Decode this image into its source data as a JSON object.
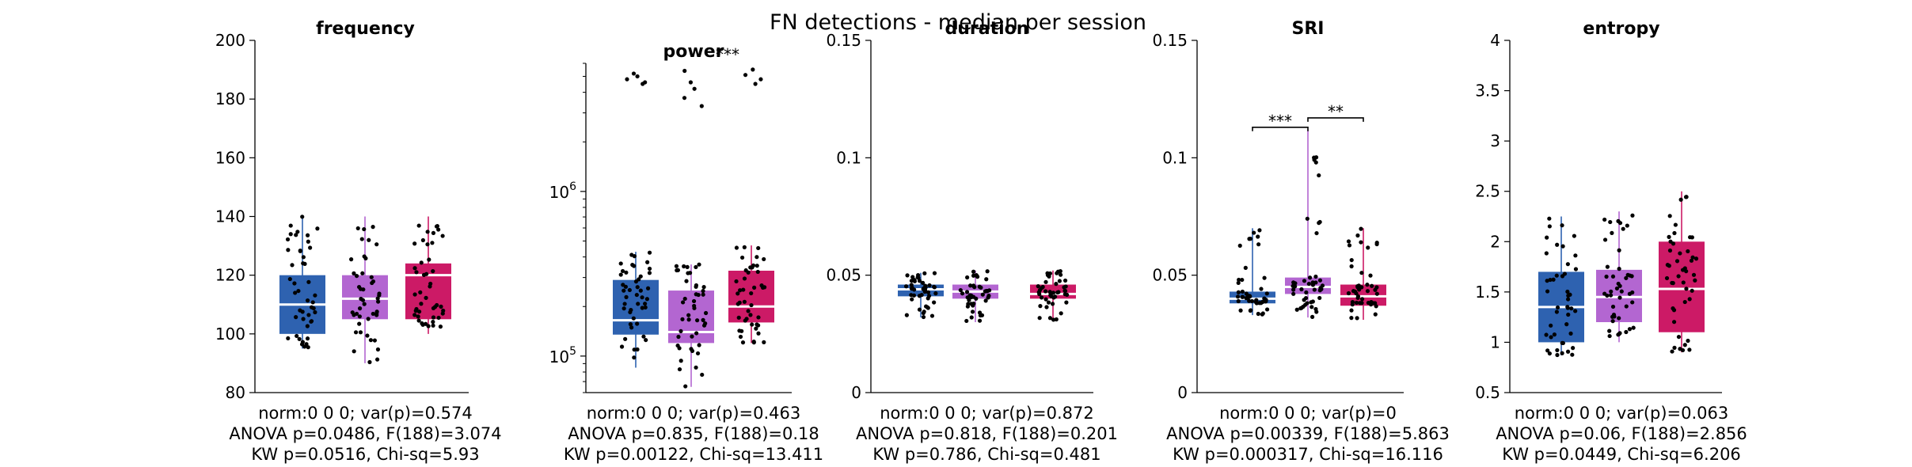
{
  "figure_title": "FN detections - median per session",
  "colors": {
    "group0": "#2e62b0",
    "group1": "#b366d1",
    "group2": "#cc1a66",
    "median": "#ffffff",
    "dots": "#000000"
  },
  "chart_data": [
    {
      "type": "box",
      "title": "frequency",
      "yscale": "linear",
      "ylim": [
        80,
        200
      ],
      "ytick_labels": [
        "80",
        "100",
        "120",
        "140",
        "160",
        "180",
        "200"
      ],
      "groups": [
        {
          "q1": 100,
          "median": 110,
          "q3": 120,
          "whisker_low": 95,
          "whisker_high": 140
        },
        {
          "q1": 105,
          "median": 112,
          "q3": 120,
          "whisker_low": 90,
          "whisker_high": 140
        },
        {
          "q1": 105,
          "median": 120,
          "q3": 124,
          "whisker_low": 100,
          "whisker_high": 140
        }
      ],
      "significance": [],
      "stats": [
        "norm:0  0  0; var(p)=0.574",
        "ANOVA p=0.0486, F(188)=3.074",
        "KW p=0.0516, Chi-sq=5.93"
      ]
    },
    {
      "type": "box",
      "title": "power",
      "yscale": "log",
      "ylim": [
        60000,
        6000000
      ],
      "ytick_labels": [
        "10^5",
        "10^6"
      ],
      "groups": [
        {
          "q1": 135000,
          "median": 165000,
          "q3": 290000,
          "whisker_low": 85000,
          "whisker_high": 430000,
          "outliers": [
            4500000,
            4800000,
            5000000,
            5200000,
            4600000
          ]
        },
        {
          "q1": 120000,
          "median": 140000,
          "q3": 250000,
          "whisker_low": 65000,
          "whisker_high": 360000,
          "outliers": [
            3300000,
            3700000,
            4200000,
            4600000,
            5400000
          ]
        },
        {
          "q1": 160000,
          "median": 200000,
          "q3": 330000,
          "whisker_low": 120000,
          "whisker_high": 470000,
          "outliers": [
            4500000,
            4800000,
            5100000,
            5500000
          ]
        }
      ],
      "significance": [
        {
          "label": "***",
          "from": 1,
          "to": 2,
          "show_bracket": false
        }
      ],
      "stats": [
        "norm:0  0  0; var(p)=0.463",
        "ANOVA p=0.835, F(188)=0.18",
        "KW p=0.00122, Chi-sq=13.411"
      ]
    },
    {
      "type": "box",
      "title": "duration",
      "yscale": "linear",
      "ylim": [
        0,
        0.15
      ],
      "ytick_labels": [
        "0",
        "0.05",
        "0.1",
        "0.15"
      ],
      "groups": [
        {
          "q1": 0.041,
          "median": 0.044,
          "q3": 0.046,
          "whisker_low": 0.032,
          "whisker_high": 0.051
        },
        {
          "q1": 0.04,
          "median": 0.043,
          "q3": 0.046,
          "whisker_low": 0.03,
          "whisker_high": 0.052
        },
        {
          "q1": 0.04,
          "median": 0.042,
          "q3": 0.046,
          "whisker_low": 0.031,
          "whisker_high": 0.052
        }
      ],
      "significance": [],
      "stats": [
        "norm:0  0  0; var(p)=0.872",
        "ANOVA p=0.818, F(188)=0.201",
        "KW p=0.786, Chi-sq=0.481"
      ]
    },
    {
      "type": "box",
      "title": "SRI",
      "yscale": "linear",
      "ylim": [
        0,
        0.15
      ],
      "ytick_labels": [
        "0",
        "0.05",
        "0.1",
        "0.15"
      ],
      "groups": [
        {
          "q1": 0.038,
          "median": 0.04,
          "q3": 0.043,
          "whisker_low": 0.033,
          "whisker_high": 0.07
        },
        {
          "q1": 0.042,
          "median": 0.045,
          "q3": 0.049,
          "whisker_low": 0.032,
          "whisker_high": 0.112
        },
        {
          "q1": 0.037,
          "median": 0.041,
          "q3": 0.046,
          "whisker_low": 0.031,
          "whisker_high": 0.07
        }
      ],
      "significance": [
        {
          "label": "***",
          "from": 0,
          "to": 1,
          "y": 0.113,
          "show_bracket": true
        },
        {
          "label": "**",
          "from": 1,
          "to": 2,
          "y": 0.117,
          "show_bracket": true
        }
      ],
      "stats": [
        "norm:0  0  0; var(p)=0",
        "ANOVA p=0.00339, F(188)=5.863",
        "KW p=0.000317, Chi-sq=16.116"
      ]
    },
    {
      "type": "box",
      "title": "entropy",
      "yscale": "linear",
      "ylim": [
        0.5,
        4
      ],
      "ytick_labels": [
        "0.5",
        "1",
        "1.5",
        "2",
        "2.5",
        "3",
        "3.5",
        "4"
      ],
      "groups": [
        {
          "q1": 1.0,
          "median": 1.35,
          "q3": 1.7,
          "whisker_low": 0.87,
          "whisker_high": 2.25
        },
        {
          "q1": 1.2,
          "median": 1.45,
          "q3": 1.72,
          "whisker_low": 1.0,
          "whisker_high": 2.3
        },
        {
          "q1": 1.1,
          "median": 1.53,
          "q3": 2.0,
          "whisker_low": 0.9,
          "whisker_high": 2.5
        }
      ],
      "significance": [],
      "stats": [
        "norm:0  0  0; var(p)=0.063",
        "ANOVA p=0.06, F(188)=2.856",
        "KW p=0.0449, Chi-sq=6.206"
      ]
    }
  ]
}
